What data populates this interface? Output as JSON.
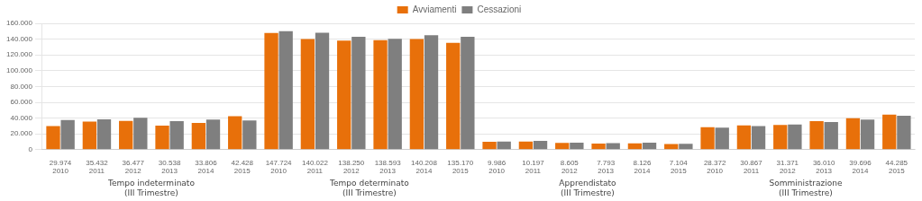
{
  "chart_data": {
    "type": "bar",
    "categories": [
      "29.974\n2010",
      "35.432\n2011",
      "36.477\n2012",
      "30.538\n2013",
      "33.806\n2014",
      "42.428\n2015",
      "147.724\n2010",
      "140.022\n2011",
      "138.250\n2012",
      "138.593\n2013",
      "140.208\n2014",
      "135.170\n2015",
      "9.986\n2010",
      "10.197\n2011",
      "8.605\n2012",
      "7.793\n2013",
      "8.126\n2014",
      "7.104\n2015",
      "28.372\n2010",
      "30.867\n2011",
      "31.371\n2012",
      "36.010\n2013",
      "39.696\n2014",
      "44.285\n2015"
    ],
    "series": [
      {
        "name": "Avviamenti",
        "color": "#E8700A",
        "values": [
          29974,
          35432,
          36477,
          30538,
          33806,
          42428,
          147724,
          140022,
          138250,
          138593,
          140208,
          135170,
          9986,
          10197,
          8605,
          7793,
          8126,
          7104,
          28372,
          30867,
          31371,
          36010,
          39696,
          44285
        ]
      },
      {
        "name": "Cessazioni",
        "color": "#7f7f7f",
        "values": [
          37500,
          38500,
          40500,
          36000,
          38000,
          37000,
          150000,
          148000,
          143000,
          140500,
          145000,
          143000,
          10200,
          11000,
          9000,
          8200,
          8800,
          7500,
          28000,
          30000,
          32000,
          35000,
          38000,
          43000
        ]
      }
    ],
    "annotations": [
      {
        "text": "Tempo indeterminato\n(III Trimestre)"
      },
      {
        "text": "Tempo determinato\n(III Trimestre)"
      },
      {
        "text": "Apprendistato\n(III Trimestre)"
      },
      {
        "text": "Somministrazione\n(III Trimestre)"
      }
    ],
    "ylim": [
      0,
      160000
    ],
    "yticks": [
      0,
      {
        "value": 20000,
        "label": "20.000"
      },
      {
        "value": 40000,
        "label": "40.000"
      },
      {
        "value": 60000,
        "label": "60.000"
      },
      {
        "value": 80000,
        "label": "80.000"
      },
      {
        "value": 100000,
        "label": "100.000"
      },
      {
        "value": 120000,
        "label": "120.000"
      },
      {
        "value": 140000,
        "label": "140.000"
      },
      {
        "value": 160000,
        "label": "160.000"
      }
    ],
    "grid": true,
    "legend": "top"
  }
}
